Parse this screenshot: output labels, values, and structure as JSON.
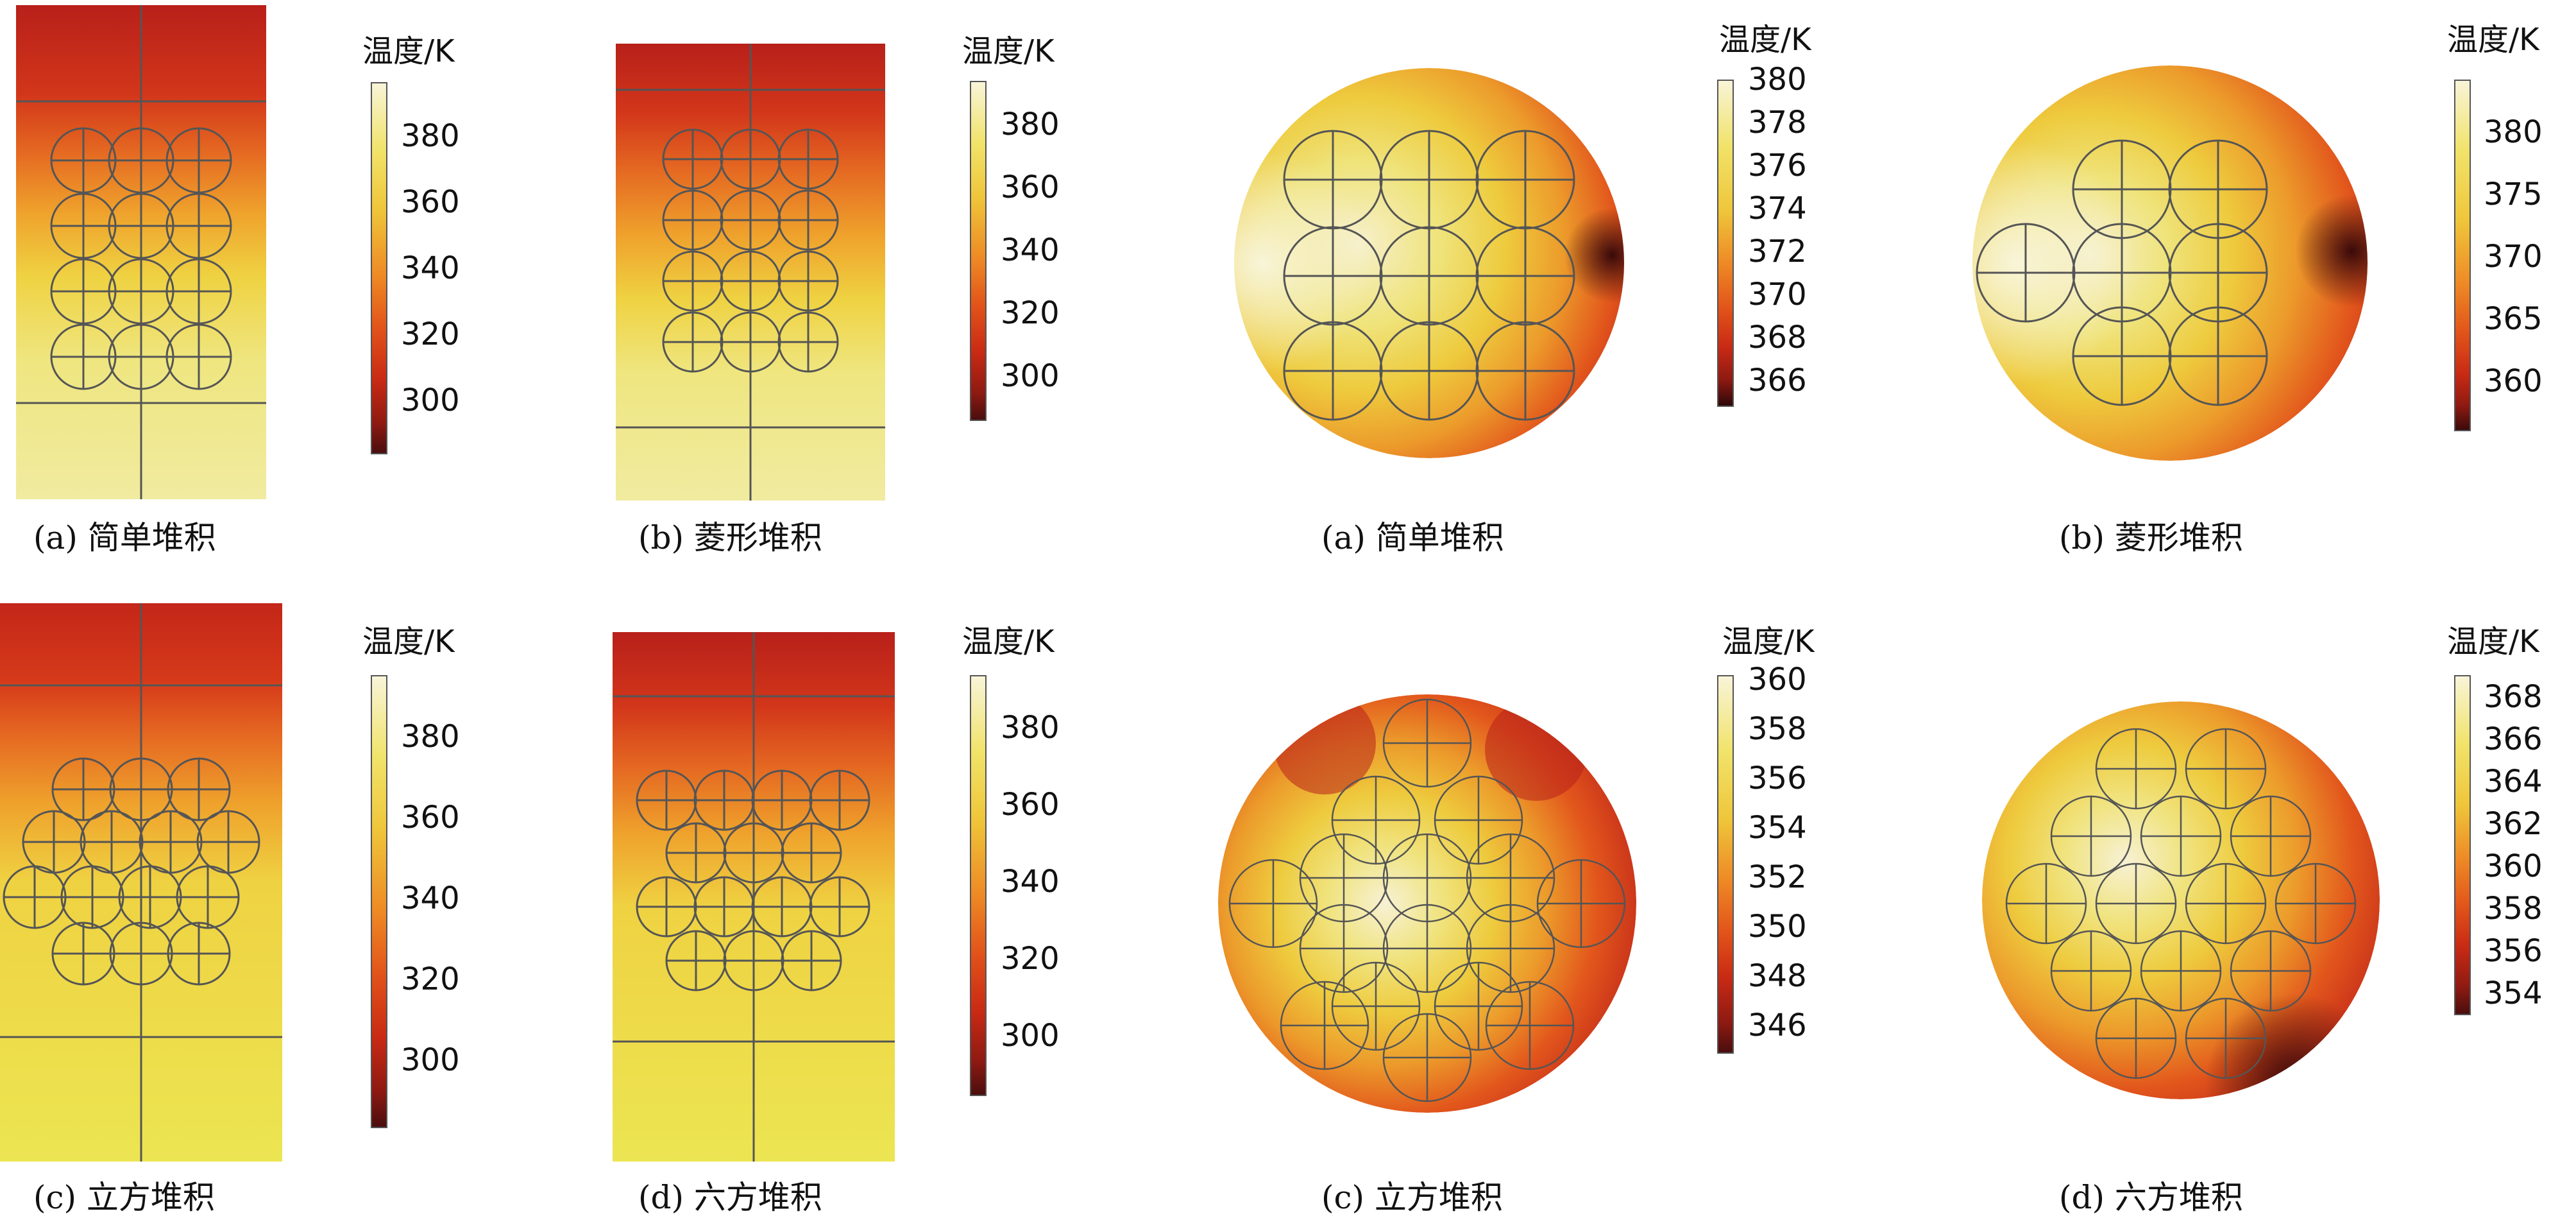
{
  "colormap": [
    "#4a0e0e",
    "#8e1a12",
    "#c92a14",
    "#e2541a",
    "#ee8a25",
    "#f2b830",
    "#efd83f",
    "#f3ea8a",
    "#f8f4d8"
  ],
  "panels": [
    {
      "id": "side-a",
      "shape": "rect",
      "caption": "(a) 简单堆积",
      "colorbar": {
        "title": "温度/K",
        "ticks": [
          "380",
          "360",
          "340",
          "320",
          "300"
        ]
      },
      "field": "vertical",
      "packing": "simple"
    },
    {
      "id": "side-b",
      "shape": "rect",
      "caption": "(b) 菱形堆积",
      "colorbar": {
        "title": "温度/K",
        "ticks": [
          "380",
          "360",
          "340",
          "320",
          "300"
        ]
      },
      "field": "vertical",
      "packing": "rhombic"
    },
    {
      "id": "top-a",
      "shape": "circle",
      "caption": "(a) 简单堆积",
      "colorbar": {
        "title": "温度/K",
        "ticks": [
          "380",
          "378",
          "376",
          "374",
          "372",
          "370",
          "368",
          "366"
        ]
      },
      "field": "hot-left",
      "packing": "grid3"
    },
    {
      "id": "top-b",
      "shape": "circle",
      "caption": "(b) 菱形堆积",
      "colorbar": {
        "title": "温度/K",
        "ticks": [
          "380",
          "375",
          "370",
          "365",
          "360"
        ]
      },
      "field": "hot-left",
      "packing": "rhombic-top"
    },
    {
      "id": "side-c",
      "shape": "rect",
      "caption": "(c) 立方堆积",
      "colorbar": {
        "title": "温度/K",
        "ticks": [
          "380",
          "360",
          "340",
          "320",
          "300"
        ]
      },
      "field": "vertical",
      "packing": "cubic"
    },
    {
      "id": "side-d",
      "shape": "rect",
      "caption": "(d) 六方堆积",
      "colorbar": {
        "title": "温度/K",
        "ticks": [
          "380",
          "360",
          "340",
          "320",
          "300"
        ]
      },
      "field": "vertical",
      "packing": "hex"
    },
    {
      "id": "top-c",
      "shape": "circle",
      "caption": "(c) 立方堆积",
      "colorbar": {
        "title": "温度/K",
        "ticks": [
          "360",
          "358",
          "356",
          "354",
          "352",
          "350",
          "348",
          "346"
        ]
      },
      "field": "hot-center",
      "packing": "cubic-top"
    },
    {
      "id": "top-d",
      "shape": "circle",
      "caption": "(d) 六方堆积",
      "colorbar": {
        "title": "温度/K",
        "ticks": [
          "368",
          "366",
          "364",
          "362",
          "360",
          "358",
          "356",
          "354"
        ]
      },
      "field": "hot-center",
      "packing": "hex-top"
    }
  ]
}
